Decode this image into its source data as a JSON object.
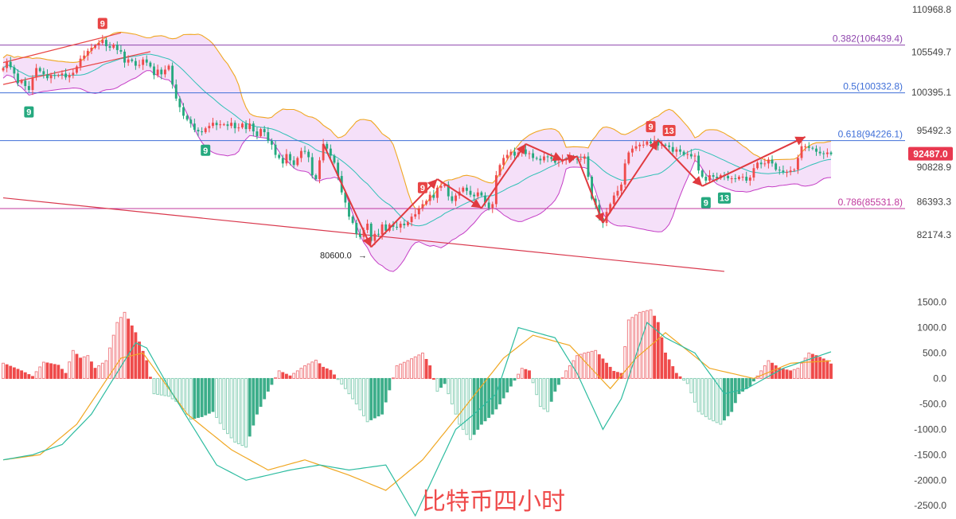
{
  "chart_data": [
    {
      "type": "candlestick",
      "title": "",
      "xlabel": "",
      "ylabel": "",
      "ylim": [
        78000,
        112000
      ],
      "y_ticks": [
        "110968.8",
        "105549.7",
        "100395.1",
        "95492.3",
        "90828.9",
        "86393.3",
        "82174.3"
      ],
      "current_price": "92487.0",
      "current_price_value": 92487.0,
      "low_annotation": "80600.0",
      "low_value": 80600.0,
      "fib_levels": [
        {
          "label": "0.382(106439.4)",
          "value": 106439.4,
          "color": "#8e44ad"
        },
        {
          "label": "0.5(100332.8)",
          "value": 100332.8,
          "color": "#3f6fd8"
        },
        {
          "label": "0.618(94226.1)",
          "value": 94226.1,
          "color": "#3f6fd8"
        },
        {
          "label": "0.786(85531.8)",
          "value": 85531.8,
          "color": "#c0399e"
        }
      ],
      "td_markers": [
        {
          "text": "9",
          "bar": 27,
          "color": "#e84545",
          "position": "above"
        },
        {
          "text": "9",
          "bar": 7,
          "color": "#25a97f",
          "position": "below"
        },
        {
          "text": "9",
          "bar": 55,
          "color": "#25a97f",
          "position": "below"
        },
        {
          "text": "9",
          "bar": 114,
          "color": "#e84545",
          "position": "above"
        },
        {
          "text": "9",
          "bar": 176,
          "color": "#e84545",
          "position": "above"
        },
        {
          "text": "13",
          "bar": 181,
          "color": "#e84545",
          "position": "above"
        },
        {
          "text": "9",
          "bar": 191,
          "color": "#25a97f",
          "position": "below"
        },
        {
          "text": "13",
          "bar": 196,
          "color": "#25a97f",
          "position": "below"
        }
      ],
      "pivots": [
        {
          "bar": 87,
          "value": 93800
        },
        {
          "bar": 100,
          "value": 80600
        },
        {
          "bar": 118,
          "value": 89300
        },
        {
          "bar": 130,
          "value": 85600
        },
        {
          "bar": 142,
          "value": 93800
        },
        {
          "bar": 152,
          "value": 91700
        },
        {
          "bar": 156,
          "value": 92200
        },
        {
          "bar": 163,
          "value": 83700
        },
        {
          "bar": 178,
          "value": 94300
        },
        {
          "bar": 190,
          "value": 88400
        },
        {
          "bar": 218,
          "value": 94700
        }
      ],
      "trend_lines": [
        {
          "from": [
            0,
            104200
          ],
          "to": [
            32,
            108000
          ],
          "color": "#e84545"
        },
        {
          "from": [
            0,
            101400
          ],
          "to": [
            40,
            105600
          ],
          "color": "#e84545"
        },
        {
          "from": [
            0,
            86900
          ],
          "to": [
            196,
            77500
          ],
          "color": "#d9384d"
        }
      ],
      "bollinger": {
        "period": 20,
        "stddev": 2
      },
      "series": [
        {
          "name": "",
          "values": [
            103500,
            104300,
            103600,
            102800,
            101600,
            101900,
            101200,
            100700,
            102300,
            103500,
            103100,
            102700,
            102200,
            102600,
            102500,
            102600,
            102800,
            102300,
            102600,
            102900,
            103700,
            104700,
            105100,
            105700,
            106100,
            106400,
            106700,
            107100,
            106300,
            106100,
            106500,
            105800,
            105600,
            104200,
            104600,
            104400,
            103800,
            103900,
            104600,
            104200,
            103700,
            102600,
            103300,
            102700,
            103300,
            103800,
            101400,
            99600,
            98500,
            97400,
            96900,
            96400,
            95600,
            95400,
            95300,
            95800,
            96100,
            96500,
            96200,
            96300,
            96300,
            96100,
            96500,
            95800,
            95900,
            96400,
            95700,
            96400,
            95400,
            94800,
            95700,
            95300,
            94200,
            93700,
            92400,
            92000,
            91300,
            92500,
            91700,
            91100,
            92000,
            92900,
            92800,
            92100,
            89800,
            89300,
            91700,
            93800,
            93200,
            92300,
            91400,
            89700,
            87600,
            86300,
            84500,
            83700,
            82300,
            81900,
            82800,
            83600,
            81400,
            82300,
            82200,
            83500,
            82700,
            83500,
            83200,
            83100,
            83600,
            83400,
            83800,
            84500,
            84800,
            85600,
            86100,
            86500,
            87300,
            86900,
            88200,
            88400,
            88600,
            87100,
            86500,
            87200,
            87700,
            88200,
            87800,
            87300,
            87100,
            87600,
            87200,
            86300,
            85600,
            86100,
            89800,
            91100,
            92000,
            92400,
            92800,
            92300,
            92700,
            93100,
            92500,
            92600,
            92000,
            91900,
            91700,
            92200,
            92100,
            91900,
            91400,
            91500,
            91800,
            91800,
            92200,
            91900,
            91800,
            91900,
            92200,
            89600,
            86800,
            86000,
            84300,
            83700,
            85100,
            86100,
            87200,
            87800,
            88600,
            91300,
            92700,
            93200,
            93500,
            93700,
            93700,
            94100,
            93900,
            94200,
            93600,
            93700,
            93600,
            93400,
            92800,
            93100,
            92800,
            92400,
            92500,
            92200,
            92300,
            90400,
            89600,
            89100,
            89800,
            89600,
            89400,
            89800,
            89700,
            89400,
            89400,
            89300,
            89600,
            89600,
            89100,
            89500,
            90700,
            91400,
            91200,
            91300,
            91800,
            91300,
            90500,
            90400,
            90200,
            90200,
            90400,
            90500,
            92000,
            93500,
            93500,
            93300,
            93200,
            92800,
            92600,
            92500,
            92700,
            92487
          ]
        }
      ]
    },
    {
      "type": "bar",
      "title": "",
      "xlabel": "",
      "ylabel": "",
      "ylim": [
        -2700,
        1650
      ],
      "y_ticks": [
        "1500.0",
        "1000.0",
        "500.0",
        "0.0",
        "-500.0",
        "-1000.0",
        "-1500.0",
        "-2000.0",
        "-2500.0"
      ],
      "colors": {
        "pos_up": "#f07f84",
        "pos_down": "#ef4b4b",
        "neg_down": "#8ed1b9",
        "neg_up": "#3dae8a",
        "fast": "#2dbca0",
        "slow": "#f0a722"
      },
      "histogram_keyframes": [
        [
          0,
          300
        ],
        [
          5,
          150
        ],
        [
          8,
          40
        ],
        [
          11,
          320
        ],
        [
          15,
          260
        ],
        [
          17,
          100
        ],
        [
          19,
          550
        ],
        [
          21,
          400
        ],
        [
          23,
          450
        ],
        [
          25,
          200
        ],
        [
          28,
          350
        ],
        [
          31,
          1100
        ],
        [
          33,
          1300
        ],
        [
          36,
          900
        ],
        [
          39,
          350
        ],
        [
          41,
          -300
        ],
        [
          45,
          -350
        ],
        [
          48,
          -500
        ],
        [
          51,
          -800
        ],
        [
          54,
          -750
        ],
        [
          57,
          -650
        ],
        [
          60,
          -1000
        ],
        [
          63,
          -1250
        ],
        [
          66,
          -1350
        ],
        [
          69,
          -700
        ],
        [
          72,
          -250
        ],
        [
          75,
          150
        ],
        [
          78,
          50
        ],
        [
          82,
          250
        ],
        [
          85,
          360
        ],
        [
          87,
          220
        ],
        [
          89,
          160
        ],
        [
          93,
          -200
        ],
        [
          96,
          -500
        ],
        [
          99,
          -850
        ],
        [
          103,
          -700
        ],
        [
          107,
          250
        ],
        [
          110,
          350
        ],
        [
          114,
          500
        ],
        [
          116,
          250
        ],
        [
          118,
          -250
        ],
        [
          120,
          -100
        ],
        [
          124,
          -900
        ],
        [
          127,
          -1200
        ],
        [
          130,
          -900
        ],
        [
          133,
          -700
        ],
        [
          135,
          -500
        ],
        [
          138,
          -150
        ],
        [
          141,
          200
        ],
        [
          143,
          150
        ],
        [
          146,
          -550
        ],
        [
          148,
          -650
        ],
        [
          150,
          -250
        ],
        [
          153,
          150
        ],
        [
          156,
          450
        ],
        [
          158,
          500
        ],
        [
          161,
          550
        ],
        [
          164,
          300
        ],
        [
          166,
          140
        ],
        [
          168,
          100
        ],
        [
          170,
          1150
        ],
        [
          173,
          1300
        ],
        [
          176,
          1350
        ],
        [
          178,
          1100
        ],
        [
          180,
          500
        ],
        [
          183,
          100
        ],
        [
          186,
          -100
        ],
        [
          189,
          -650
        ],
        [
          192,
          -800
        ],
        [
          195,
          -900
        ],
        [
          198,
          -650
        ],
        [
          200,
          -300
        ],
        [
          203,
          -150
        ],
        [
          206,
          150
        ],
        [
          208,
          350
        ],
        [
          211,
          200
        ],
        [
          214,
          150
        ],
        [
          216,
          200
        ],
        [
          219,
          500
        ],
        [
          221,
          450
        ],
        [
          224,
          350
        ],
        [
          226,
          220
        ]
      ],
      "fast_keyframes": [
        [
          0,
          -1600
        ],
        [
          8,
          -1500
        ],
        [
          16,
          -1300
        ],
        [
          24,
          -700
        ],
        [
          30,
          0
        ],
        [
          36,
          700
        ],
        [
          39,
          600
        ],
        [
          46,
          -300
        ],
        [
          58,
          -1700
        ],
        [
          66,
          -2000
        ],
        [
          78,
          -1800
        ],
        [
          86,
          -1700
        ],
        [
          94,
          -1800
        ],
        [
          104,
          -1700
        ],
        [
          112,
          -2700
        ],
        [
          123,
          -1000
        ],
        [
          128,
          -700
        ],
        [
          134,
          -300
        ],
        [
          140,
          1000
        ],
        [
          150,
          800
        ],
        [
          156,
          100
        ],
        [
          163,
          -1000
        ],
        [
          168,
          -400
        ],
        [
          175,
          1100
        ],
        [
          180,
          800
        ],
        [
          188,
          500
        ],
        [
          196,
          -300
        ],
        [
          202,
          -200
        ],
        [
          212,
          200
        ],
        [
          226,
          550
        ]
      ],
      "slow_keyframes": [
        [
          0,
          -1600
        ],
        [
          10,
          -1500
        ],
        [
          20,
          -900
        ],
        [
          32,
          400
        ],
        [
          38,
          500
        ],
        [
          50,
          -700
        ],
        [
          62,
          -1400
        ],
        [
          72,
          -1800
        ],
        [
          82,
          -1600
        ],
        [
          94,
          -1900
        ],
        [
          104,
          -2200
        ],
        [
          114,
          -1600
        ],
        [
          124,
          -700
        ],
        [
          136,
          400
        ],
        [
          144,
          850
        ],
        [
          154,
          650
        ],
        [
          165,
          -200
        ],
        [
          172,
          400
        ],
        [
          180,
          900
        ],
        [
          192,
          200
        ],
        [
          204,
          0
        ],
        [
          214,
          300
        ],
        [
          226,
          350
        ]
      ]
    }
  ],
  "watermark": "比特币四小时",
  "colors": {
    "up": "#ef4b4b",
    "down": "#25a97f",
    "bb_fill": "#f2d6f7",
    "bb_upper": "#f0a722",
    "bb_lower": "#c53fc6",
    "bb_mid": "#2fc0b6",
    "pivot": "#e03a3f",
    "price_tag": "#e8384f"
  }
}
